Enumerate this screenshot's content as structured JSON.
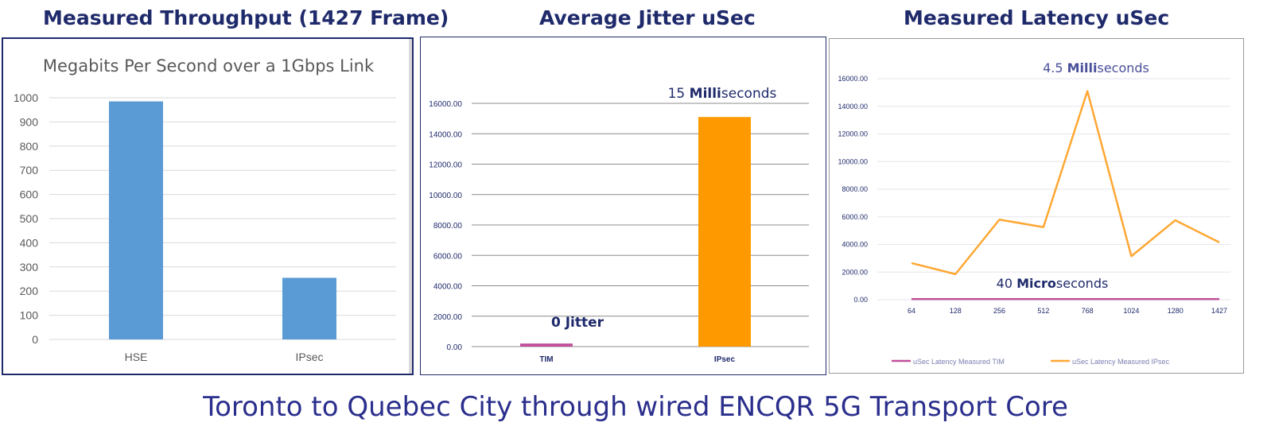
{
  "footer": "Toronto to Quebec City through wired ENCQR 5G Transport Core",
  "colors": {
    "heading": "#1f2a6b",
    "bar_blue": "#5b9bd5",
    "bar_orange": "#ff9900",
    "tim_line": "#c0509b",
    "ipsec_line": "#ffa733",
    "footer": "#2a2e8c"
  },
  "chart_data": [
    {
      "type": "bar",
      "heading": "Measured Throughput (1427 Frame)",
      "title": "Megabits Per Second over a 1Gbps Link",
      "categories": [
        "HSE",
        "IPsec"
      ],
      "values": [
        985,
        255
      ],
      "ylim": [
        0,
        1000
      ],
      "yticks": [
        "0",
        "100",
        "200",
        "300",
        "400",
        "500",
        "600",
        "700",
        "800",
        "900",
        "1000"
      ],
      "grid": true,
      "bar_color": "#5b9bd5"
    },
    {
      "type": "bar",
      "heading": "Average Jitter uSec",
      "categories": [
        "TIM",
        "IPsec"
      ],
      "values": [
        200,
        15100
      ],
      "colors": [
        "#c0509b",
        "#ff9900"
      ],
      "ylim": [
        0,
        16000
      ],
      "yticks": [
        "0.00",
        "2000.00",
        "4000.00",
        "6000.00",
        "8000.00",
        "10000.00",
        "12000.00",
        "14000.00",
        "16000.00"
      ],
      "grid": true,
      "annotations": [
        {
          "pre": "",
          "bold": "0 Jitter",
          "post": ""
        },
        {
          "pre": "15 ",
          "bold": "Milli",
          "post": "seconds"
        }
      ]
    },
    {
      "type": "line",
      "heading": "Measured Latency uSec",
      "categories": [
        "64",
        "128",
        "256",
        "512",
        "768",
        "1024",
        "1280",
        "1427"
      ],
      "series": [
        {
          "name": "uSec Latency Measured TIM",
          "values": [
            40,
            40,
            40,
            40,
            40,
            40,
            40,
            40
          ],
          "color": "#c0509b"
        },
        {
          "name": "uSec Latency Measured IPsec",
          "values": [
            2650,
            1850,
            5800,
            5250,
            15100,
            3150,
            5750,
            4150
          ],
          "color": "#ffa733"
        }
      ],
      "ylim": [
        0,
        16000
      ],
      "yticks": [
        "0.00",
        "2000.00",
        "4000.00",
        "6000.00",
        "8000.00",
        "10000.00",
        "12000.00",
        "14000.00",
        "16000.00"
      ],
      "grid": true,
      "legend": "bottom",
      "annotations": [
        {
          "pre": "4.5 ",
          "bold": "Milli",
          "post": "seconds"
        },
        {
          "pre": "40 ",
          "bold": "Micro",
          "post": "seconds"
        }
      ]
    }
  ]
}
